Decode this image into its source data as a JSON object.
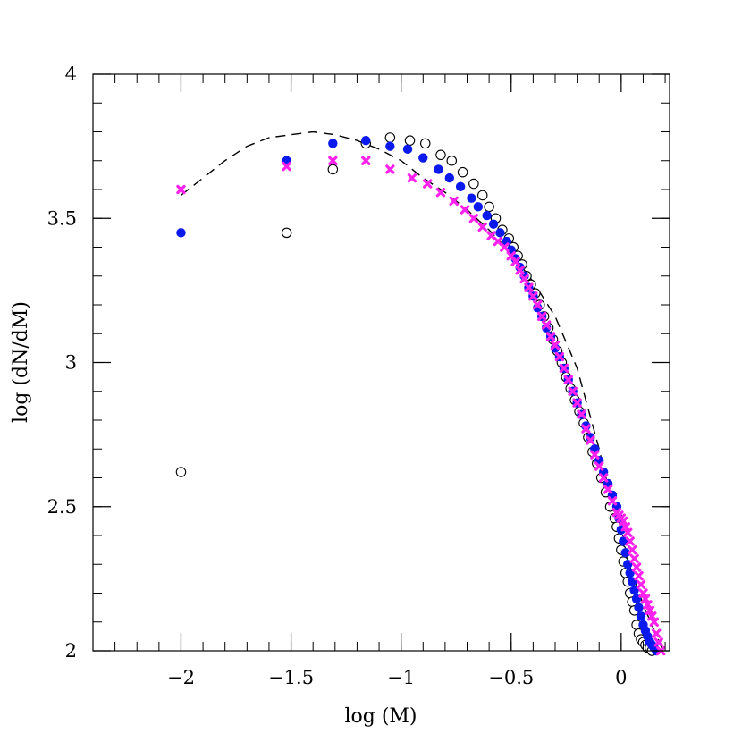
{
  "chart_data": {
    "type": "scatter",
    "xlabel": "log (M)",
    "ylabel": "log (dN/dM)",
    "xlim": [
      -2.4,
      0.22
    ],
    "ylim": [
      2.0,
      4.0
    ],
    "xticks": [
      {
        "value": -2,
        "label": "−2"
      },
      {
        "value": -1.5,
        "label": "−1.5"
      },
      {
        "value": -1,
        "label": "−1"
      },
      {
        "value": -0.5,
        "label": "−0.5"
      },
      {
        "value": 0,
        "label": "0"
      }
    ],
    "yticks": [
      {
        "value": 2,
        "label": "2"
      },
      {
        "value": 2.5,
        "label": "2.5"
      },
      {
        "value": 3,
        "label": "3"
      },
      {
        "value": 3.5,
        "label": "3.5"
      },
      {
        "value": 4,
        "label": "4"
      }
    ],
    "x_minor_step": 0.1,
    "y_minor_step": 0.1,
    "grid": false,
    "colors": {
      "open": "#000000",
      "blue": "#0a1aee",
      "magenta": "#ff22ee",
      "model": "#000000"
    },
    "series": [
      {
        "marker": "open-circle",
        "x": [
          -2.0,
          -1.52,
          -1.31,
          -1.16,
          -1.05,
          -0.96,
          -0.89,
          -0.82,
          -0.77,
          -0.72,
          -0.67,
          -0.63,
          -0.6,
          -0.57,
          -0.54,
          -0.51,
          -0.49,
          -0.47,
          -0.45,
          -0.43,
          -0.41,
          -0.39,
          -0.37,
          -0.35,
          -0.33,
          -0.31,
          -0.29,
          -0.27,
          -0.25,
          -0.23,
          -0.21,
          -0.19,
          -0.17,
          -0.15,
          -0.13,
          -0.11,
          -0.09,
          -0.07,
          -0.05,
          -0.03,
          -0.02,
          -0.01,
          0.0,
          0.01,
          0.02,
          0.03,
          0.04,
          0.05,
          0.06,
          0.07,
          0.08,
          0.09,
          0.1,
          0.11,
          0.12,
          0.13,
          0.14
        ],
        "y": [
          2.62,
          3.45,
          3.67,
          3.76,
          3.78,
          3.77,
          3.76,
          3.72,
          3.7,
          3.66,
          3.62,
          3.58,
          3.54,
          3.5,
          3.46,
          3.43,
          3.4,
          3.37,
          3.34,
          3.3,
          3.27,
          3.24,
          3.2,
          3.16,
          3.12,
          3.08,
          3.04,
          3.0,
          2.95,
          2.91,
          2.87,
          2.83,
          2.79,
          2.74,
          2.69,
          2.65,
          2.6,
          2.55,
          2.5,
          2.46,
          2.43,
          2.39,
          2.35,
          2.31,
          2.27,
          2.24,
          2.2,
          2.17,
          2.14,
          2.09,
          2.06,
          2.04,
          2.03,
          2.02,
          2.01,
          2.01,
          2.0
        ]
      },
      {
        "marker": "filled-circle",
        "x": [
          -2.0,
          -1.52,
          -1.31,
          -1.16,
          -1.05,
          -0.97,
          -0.9,
          -0.83,
          -0.78,
          -0.73,
          -0.68,
          -0.65,
          -0.61,
          -0.58,
          -0.55,
          -0.52,
          -0.5,
          -0.48,
          -0.46,
          -0.44,
          -0.42,
          -0.4,
          -0.38,
          -0.36,
          -0.34,
          -0.32,
          -0.3,
          -0.28,
          -0.26,
          -0.24,
          -0.22,
          -0.2,
          -0.18,
          -0.16,
          -0.14,
          -0.12,
          -0.1,
          -0.08,
          -0.06,
          -0.04,
          -0.02,
          -0.01,
          0.0,
          0.01,
          0.02,
          0.03,
          0.04,
          0.05,
          0.06,
          0.07,
          0.08,
          0.09,
          0.1,
          0.11,
          0.12,
          0.13,
          0.14,
          0.15,
          0.16
        ],
        "y": [
          3.45,
          3.7,
          3.76,
          3.77,
          3.75,
          3.74,
          3.71,
          3.67,
          3.64,
          3.61,
          3.57,
          3.54,
          3.51,
          3.48,
          3.45,
          3.42,
          3.39,
          3.36,
          3.33,
          3.3,
          3.26,
          3.23,
          3.19,
          3.16,
          3.12,
          3.09,
          3.05,
          3.02,
          2.98,
          2.94,
          2.9,
          2.86,
          2.82,
          2.78,
          2.74,
          2.7,
          2.66,
          2.62,
          2.58,
          2.54,
          2.5,
          2.46,
          2.42,
          2.38,
          2.34,
          2.3,
          2.27,
          2.24,
          2.21,
          2.18,
          2.15,
          2.12,
          2.09,
          2.07,
          2.05,
          2.03,
          2.02,
          2.01,
          2.0
        ]
      },
      {
        "marker": "cross",
        "x": [
          -2.0,
          -1.52,
          -1.31,
          -1.16,
          -1.05,
          -0.95,
          -0.88,
          -0.82,
          -0.76,
          -0.71,
          -0.67,
          -0.63,
          -0.59,
          -0.56,
          -0.53,
          -0.5,
          -0.48,
          -0.46,
          -0.44,
          -0.42,
          -0.4,
          -0.38,
          -0.36,
          -0.34,
          -0.32,
          -0.3,
          -0.28,
          -0.26,
          -0.24,
          -0.22,
          -0.2,
          -0.18,
          -0.16,
          -0.14,
          -0.12,
          -0.1,
          -0.08,
          -0.06,
          -0.04,
          -0.02,
          -0.01,
          0.0,
          0.01,
          0.02,
          0.03,
          0.04,
          0.05,
          0.06,
          0.07,
          0.08,
          0.09,
          0.1,
          0.11,
          0.12,
          0.13,
          0.14,
          0.15,
          0.16,
          0.17,
          0.18
        ],
        "y": [
          3.6,
          3.68,
          3.7,
          3.7,
          3.67,
          3.64,
          3.62,
          3.59,
          3.56,
          3.53,
          3.5,
          3.47,
          3.44,
          3.42,
          3.4,
          3.37,
          3.35,
          3.32,
          3.29,
          3.26,
          3.23,
          3.2,
          3.16,
          3.13,
          3.09,
          3.06,
          3.02,
          2.98,
          2.94,
          2.9,
          2.86,
          2.82,
          2.77,
          2.73,
          2.68,
          2.64,
          2.6,
          2.56,
          2.52,
          2.48,
          2.47,
          2.46,
          2.45,
          2.43,
          2.41,
          2.38,
          2.35,
          2.32,
          2.29,
          2.26,
          2.23,
          2.2,
          2.18,
          2.16,
          2.14,
          2.12,
          2.1,
          2.06,
          2.03,
          2.0
        ]
      },
      {
        "marker": "dashed-line",
        "x": [
          -2.0,
          -1.9,
          -1.8,
          -1.7,
          -1.6,
          -1.5,
          -1.4,
          -1.3,
          -1.2,
          -1.1,
          -1.0,
          -0.9,
          -0.8,
          -0.7,
          -0.6,
          -0.5,
          -0.4,
          -0.3,
          -0.2,
          -0.1,
          0.0,
          0.1,
          0.19
        ],
        "y": [
          3.58,
          3.64,
          3.7,
          3.75,
          3.78,
          3.79,
          3.8,
          3.79,
          3.77,
          3.74,
          3.7,
          3.64,
          3.59,
          3.53,
          3.46,
          3.38,
          3.28,
          3.16,
          2.98,
          2.7,
          2.38,
          2.16,
          2.0
        ]
      }
    ]
  }
}
